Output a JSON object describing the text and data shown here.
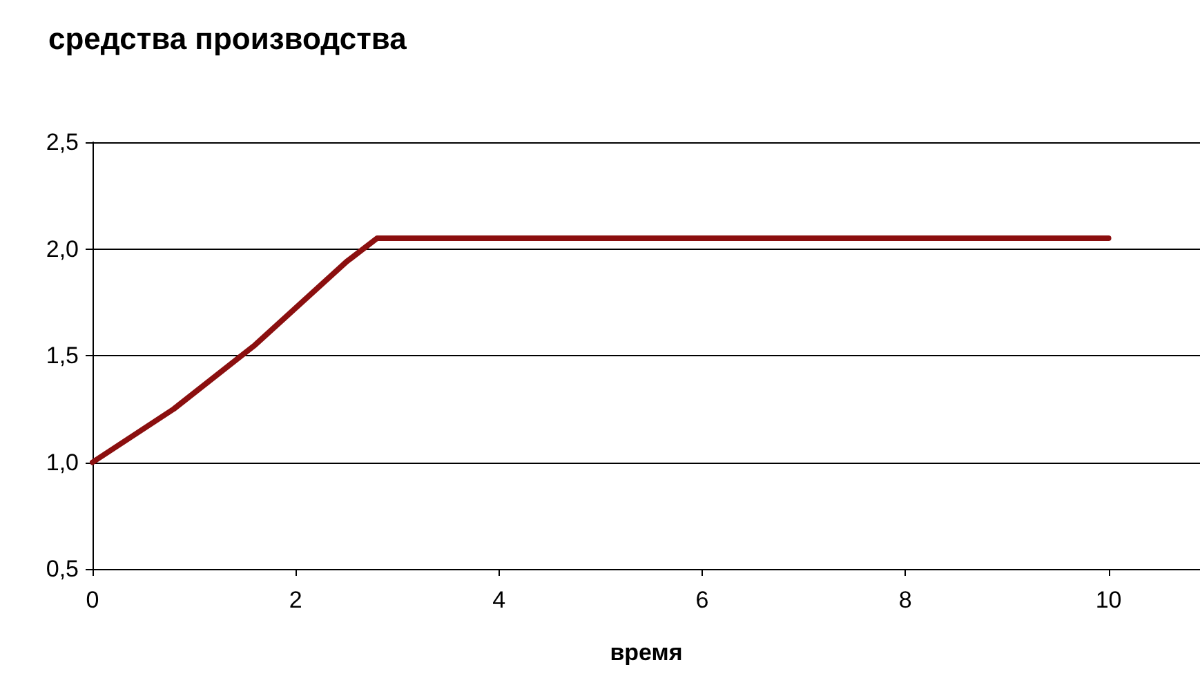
{
  "chart_data": {
    "type": "line",
    "title": "средства производства",
    "xlabel": "время",
    "x": [
      0,
      0.8,
      1.6,
      2.5,
      2.8,
      10
    ],
    "series": [
      {
        "color": "#8b0f0f",
        "values": [
          1.0,
          1.25,
          1.55,
          1.94,
          2.05,
          2.05
        ]
      }
    ],
    "xlim": [
      0,
      10.9
    ],
    "xticks": [
      0,
      2,
      4,
      6,
      8,
      10
    ],
    "ylim": [
      0.5,
      2.5
    ],
    "yticks": [
      {
        "value": 0.5,
        "label": "0,5"
      },
      {
        "value": 1.0,
        "label": "1,0"
      },
      {
        "value": 1.5,
        "label": "1,5"
      },
      {
        "value": 2.0,
        "label": "2,0"
      },
      {
        "value": 2.5,
        "label": "2,5"
      }
    ],
    "grid": "y",
    "marker": "none",
    "line_style": "solid"
  }
}
